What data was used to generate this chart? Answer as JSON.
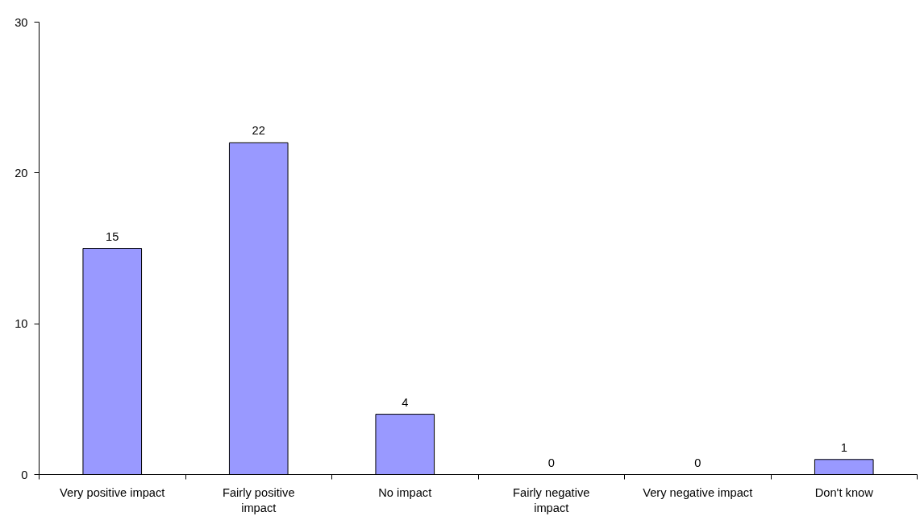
{
  "chart_data": {
    "type": "bar",
    "categories": [
      "Very positive impact",
      "Fairly positive impact",
      "No impact",
      "Fairly negative impact",
      "Very negative impact",
      "Don't know"
    ],
    "values": [
      15,
      22,
      4,
      0,
      0,
      1
    ],
    "color": "#9999ff",
    "ylim": [
      0,
      30
    ],
    "yticks": [
      0,
      10,
      20,
      30
    ],
    "grid": false,
    "data_labels": true
  }
}
